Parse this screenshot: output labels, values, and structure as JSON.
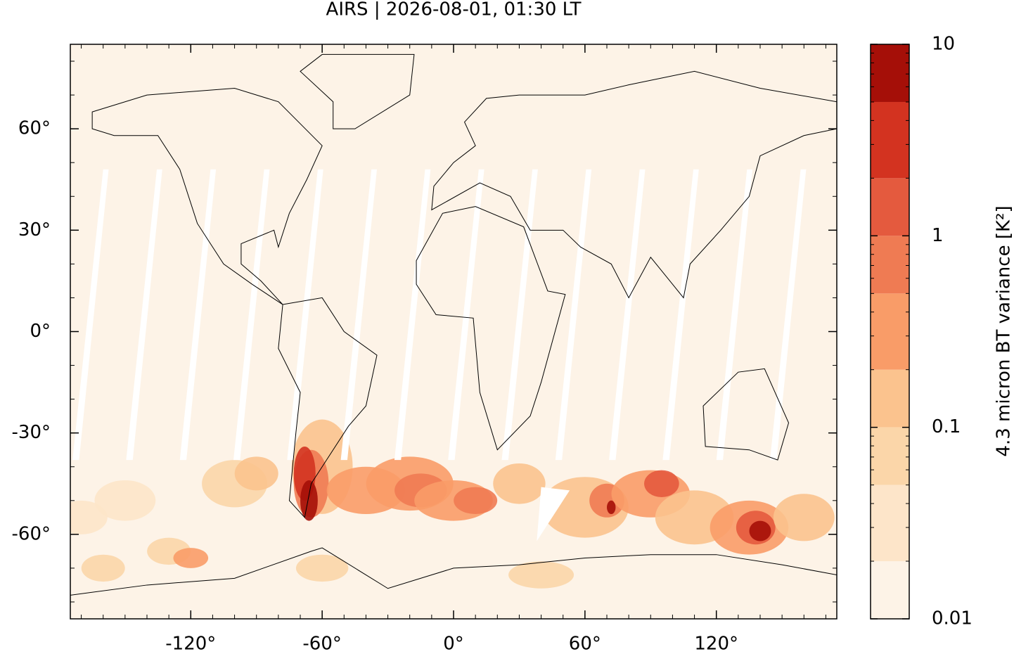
{
  "chart_data": {
    "type": "map",
    "title": "AIRS | 2026-08-01, 01:30 LT",
    "xlim": [
      -175,
      175
    ],
    "ylim": [
      -85,
      85
    ],
    "xticks": [
      {
        "value": -120,
        "label": "-120°"
      },
      {
        "value": -60,
        "label": "-60°"
      },
      {
        "value": 0,
        "label": "0°"
      },
      {
        "value": 60,
        "label": "60°"
      },
      {
        "value": 120,
        "label": "120°"
      }
    ],
    "yticks": [
      {
        "value": 60,
        "label": "60°"
      },
      {
        "value": 30,
        "label": "30°"
      },
      {
        "value": 0,
        "label": "0°"
      },
      {
        "value": -30,
        "label": "-30°"
      },
      {
        "value": -60,
        "label": "-60°"
      }
    ],
    "colorbar": {
      "label": "4.3 micron BT variance [K²]",
      "scale": "log",
      "lim": [
        0.01,
        10
      ],
      "ticks": [
        0.01,
        0.1,
        1,
        10
      ],
      "levels": [
        0.01,
        0.02,
        0.05,
        0.1,
        0.2,
        0.5,
        1,
        2,
        5,
        10
      ],
      "colors": [
        "#fdf3e7",
        "#fde5c9",
        "#fbd6a9",
        "#fbc38e",
        "#f99c68",
        "#ef7b53",
        "#e45a3e",
        "#d33320",
        "#a50f08"
      ]
    }
  }
}
